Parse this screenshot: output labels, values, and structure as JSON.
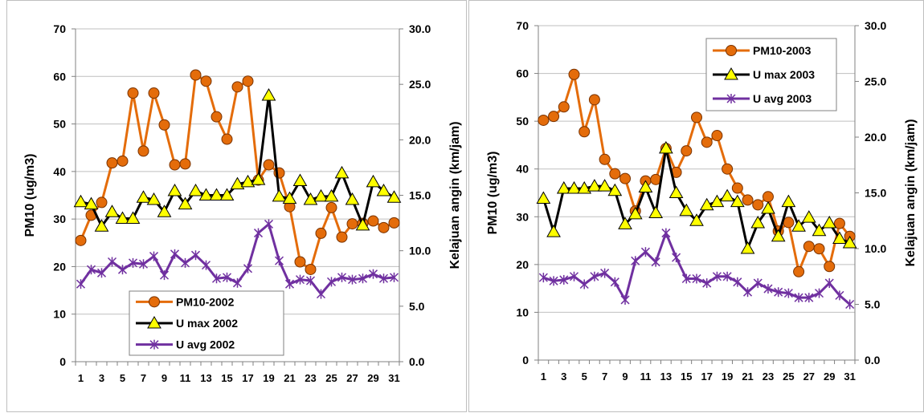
{
  "chart_data": [
    {
      "type": "line",
      "x": [
        1,
        2,
        3,
        4,
        5,
        6,
        7,
        8,
        9,
        10,
        11,
        12,
        13,
        14,
        15,
        16,
        17,
        18,
        19,
        20,
        21,
        22,
        23,
        24,
        25,
        26,
        27,
        28,
        29,
        30,
        31
      ],
      "x_tick_labels": [
        "1",
        "3",
        "5",
        "7",
        "9",
        "11",
        "13",
        "15",
        "17",
        "19",
        "21",
        "23",
        "25",
        "27",
        "29",
        "31"
      ],
      "y_left": {
        "label": "PM10 (ug/m3)",
        "lim": [
          0,
          70
        ],
        "ticks": [
          "0",
          "10",
          "20",
          "30",
          "40",
          "50",
          "60",
          "70"
        ]
      },
      "y_right": {
        "label": "Kelajuan angin (km/jam)",
        "lim": [
          0,
          30
        ],
        "ticks": [
          "0.0",
          "5.0",
          "10.0",
          "15.0",
          "20.0",
          "25.0",
          "30.0"
        ]
      },
      "grid": "horizontal",
      "legend_position": "bottom-center",
      "series": [
        {
          "name": "PM10-2002",
          "axis": "left",
          "color": "#E46C0A",
          "marker": "circle",
          "values": [
            25.5,
            30.8,
            33.5,
            41.8,
            42.2,
            56.5,
            44.3,
            56.5,
            49.8,
            41.4,
            41.6,
            60.3,
            59.0,
            51.5,
            46.8,
            57.8,
            59.0,
            38.2,
            41.4,
            39.7,
            32.6,
            21.0,
            19.4,
            27.0,
            32.4,
            26.2,
            29.0,
            29.1,
            29.6,
            28.2,
            29.2
          ]
        },
        {
          "name": "U max 2002",
          "axis": "right",
          "color": "#000000",
          "marker": "triangle",
          "values": [
            14.4,
            14.2,
            12.2,
            13.5,
            12.9,
            12.9,
            14.8,
            14.6,
            13.5,
            15.4,
            14.2,
            15.4,
            15.0,
            15.0,
            15.0,
            16.0,
            16.2,
            16.4,
            24.0,
            14.9,
            14.7,
            16.3,
            14.6,
            14.9,
            14.9,
            17.0,
            14.6,
            12.3,
            16.2,
            15.4,
            14.8
          ]
        },
        {
          "name": "U avg 2002",
          "axis": "right",
          "color": "#7030A0",
          "marker": "x",
          "values": [
            7.0,
            8.3,
            8.0,
            9.0,
            8.3,
            8.9,
            8.8,
            9.5,
            7.8,
            9.7,
            8.9,
            9.6,
            8.7,
            7.5,
            7.6,
            7.1,
            8.4,
            11.6,
            12.4,
            9.1,
            7.0,
            7.4,
            7.3,
            6.1,
            7.2,
            7.6,
            7.4,
            7.5,
            7.9,
            7.5,
            7.6
          ]
        }
      ]
    },
    {
      "type": "line",
      "x": [
        1,
        2,
        3,
        4,
        5,
        6,
        7,
        8,
        9,
        10,
        11,
        12,
        13,
        14,
        15,
        16,
        17,
        18,
        19,
        20,
        21,
        22,
        23,
        24,
        25,
        26,
        27,
        28,
        29,
        30,
        31
      ],
      "x_tick_labels": [
        "1",
        "3",
        "5",
        "7",
        "9",
        "11",
        "13",
        "15",
        "17",
        "19",
        "21",
        "23",
        "25",
        "27",
        "29",
        "31"
      ],
      "y_left": {
        "label": "PM10 (ug/m3)",
        "lim": [
          0,
          70
        ],
        "ticks": [
          "0",
          "10",
          "20",
          "30",
          "40",
          "50",
          "60",
          "70"
        ]
      },
      "y_right": {
        "label": "Kelajuan angin (km/jam)",
        "lim": [
          0,
          30
        ],
        "ticks": [
          "0.0",
          "5.0",
          "10.0",
          "15.0",
          "20.0",
          "25.0",
          "30.0"
        ]
      },
      "grid": "horizontal",
      "legend_position": "top-center",
      "series": [
        {
          "name": "PM10-2003",
          "axis": "left",
          "color": "#E46C0A",
          "marker": "circle",
          "values": [
            50.2,
            51.0,
            53.0,
            59.8,
            47.8,
            54.5,
            42.0,
            39.0,
            38.0,
            31.2,
            37.5,
            37.8,
            44.3,
            39.3,
            43.8,
            50.8,
            45.6,
            47.0,
            40.0,
            36.0,
            33.5,
            32.5,
            34.2,
            27.0,
            28.8,
            18.5,
            23.8,
            23.3,
            19.6,
            28.6,
            25.9
          ]
        },
        {
          "name": "U max 2003",
          "axis": "right",
          "color": "#000000",
          "marker": "triangle",
          "values": [
            14.5,
            11.5,
            15.4,
            15.4,
            15.4,
            15.6,
            15.6,
            15.2,
            12.2,
            13.1,
            15.5,
            13.2,
            19.0,
            15.0,
            13.4,
            12.5,
            13.9,
            14.2,
            14.7,
            14.2,
            10.0,
            12.3,
            13.6,
            11.1,
            14.2,
            12.0,
            12.8,
            11.6,
            12.3,
            10.9,
            10.5
          ]
        },
        {
          "name": "U avg 2003",
          "axis": "right",
          "color": "#7030A0",
          "marker": "x",
          "values": [
            7.4,
            7.1,
            7.2,
            7.5,
            6.8,
            7.5,
            7.8,
            7.0,
            5.4,
            8.9,
            9.7,
            8.8,
            11.4,
            9.2,
            7.3,
            7.3,
            6.9,
            7.5,
            7.5,
            7.0,
            6.1,
            6.9,
            6.4,
            6.1,
            6.0,
            5.6,
            5.6,
            6.0,
            6.9,
            5.8,
            5.0
          ]
        }
      ]
    }
  ]
}
